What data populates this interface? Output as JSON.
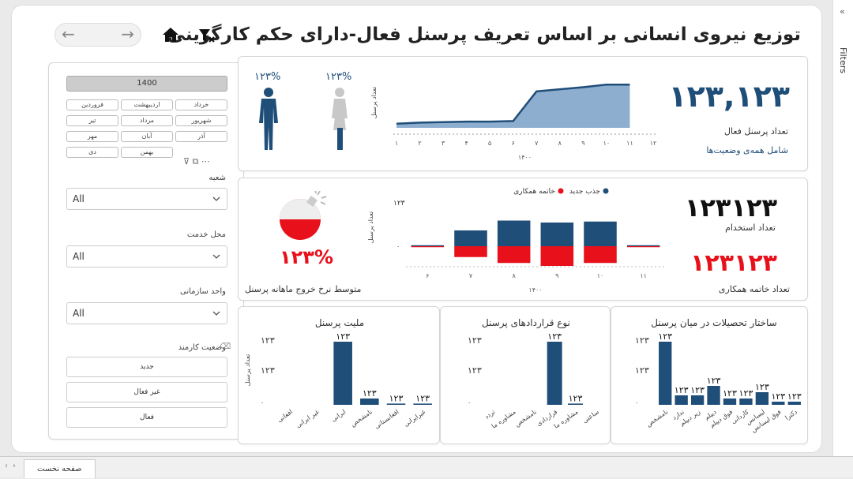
{
  "header": {
    "title": "توزیع نیروی انسانی بر اساس تعریف پرسنل فعال-دارای حکم کارگزینی",
    "nav_back": "←",
    "nav_forward": "→"
  },
  "filters_pane": {
    "label": "Filters",
    "chevron": "«"
  },
  "slicer": {
    "year": "1400",
    "months": [
      [
        "خرداد",
        "اردیبهشت",
        "فروردین"
      ],
      [
        "شهریور",
        "مرداد",
        "تیر"
      ],
      [
        "آذر",
        "آبان",
        "مهر"
      ],
      [
        "",
        "بهمن",
        "دی"
      ]
    ],
    "icons": "⊽ ⧉ ⋯",
    "branch_label": "شعبه",
    "branch_value": "All",
    "service_label": "محل خدمت",
    "service_value": "All",
    "org_label": "واحد سازمانی",
    "org_value": "All",
    "status_label": "وضعیت کارمند",
    "status_options": [
      "جدید",
      "غیر فعال",
      "فعال"
    ],
    "eraser": "⌫"
  },
  "kpi_active": {
    "value": "۱۲۳,۱۲۳",
    "label": "تعداد پرسنل فعال",
    "sublabel": "شامل همه‌ی وضعیت‌ها",
    "male_pct": "۱۲۳%",
    "female_pct": "۱۲۳%"
  },
  "kpi_hire": {
    "hire_value": "۱۲۳۱۲۳",
    "hire_label": "تعداد استخدام",
    "term_value": "۱۲۳۱۲۳",
    "term_label": "تعداد خاتمه همکاری",
    "exit_rate": "۱۲۳%",
    "exit_label": "متوسط نرخ خروج ماهانه پرسنل"
  },
  "chart_data": [
    {
      "type": "area",
      "ylabel": "تعداد پرسنل",
      "xlabel": "۱۴۰۰",
      "categories": [
        "۱",
        "۲",
        "۳",
        "۴",
        "۵",
        "۶",
        "۷",
        "۸",
        "۹",
        "۱۰",
        "۱۱",
        "۱۲"
      ],
      "values": [
        8,
        10,
        11,
        12,
        12,
        13,
        70,
        74,
        78,
        83,
        83,
        null
      ],
      "ylim": [
        0,
        100
      ],
      "color": "#8eaed0",
      "line_color": "#1f4e79"
    },
    {
      "type": "bar",
      "ylabel": "تعداد پرسنل",
      "xlabel": "۱۴۰۰",
      "legend": [
        "جذب جدید",
        "خاتمه همکاری"
      ],
      "legend_colors": [
        "#1f4e79",
        "#e8101a"
      ],
      "ytick_top": "۱۲۳",
      "ytick_zero": "۰",
      "categories": [
        "۶",
        "۷",
        "۸",
        "۹",
        "۱۰",
        "۱۱"
      ],
      "series": [
        {
          "name": "جذب جدید",
          "values": [
            1,
            16,
            26,
            24,
            25,
            1
          ]
        },
        {
          "name": "خاتمه همکاری",
          "values": [
            1,
            11,
            17,
            20,
            17,
            1
          ]
        }
      ]
    },
    {
      "type": "bar",
      "title": "ملیت پرسنل",
      "ylabel": "تعداد پرسنل",
      "yticks": [
        "۰",
        "۱۲۳",
        "۱۲۳"
      ],
      "categories": [
        "افغانی",
        "غیر ایرانی",
        "ایرانی",
        "نامشخص",
        "افغانستانی",
        "غیرایرانی"
      ],
      "values": [
        0,
        0,
        100,
        10,
        2,
        2
      ],
      "labels": [
        "",
        "",
        "۱۲۳",
        "۱۲۳",
        "۱۲۳",
        "۱۲۳"
      ]
    },
    {
      "type": "bar",
      "title": "نوع قراردادهای پرسنل",
      "yticks": [
        "۰",
        "۱۲۳",
        "۱۲۳"
      ],
      "categories": [
        "تردد",
        "مشاوره ما",
        "نامشخص",
        "قراردادی",
        "مشاوره ما",
        "ساعتی"
      ],
      "values": [
        0,
        0,
        0,
        100,
        2,
        0
      ],
      "labels": [
        "",
        "",
        "",
        "۱۲۳",
        "۱۲۳",
        ""
      ]
    },
    {
      "type": "bar",
      "title": "ساختار تحصیلات در میان پرسنل",
      "yticks": [
        "۰",
        "۱۲۳",
        "۱۲۳"
      ],
      "categories": [
        "نامشخص",
        "ندارد",
        "زیر دیپلم",
        "دیپلم",
        "فوق دیپلم",
        "کاردانی",
        "لیسانس",
        "فوق لیسانس",
        "دکترا"
      ],
      "values": [
        100,
        15,
        15,
        30,
        10,
        10,
        20,
        5,
        5
      ],
      "labels": [
        "۱۲۳",
        "۱۲۳",
        "۱۲۳",
        "۱۲۳",
        "۱۲۳",
        "۱۲۳",
        "۱۲۳",
        "۱۲۳",
        "۱۲۳"
      ]
    }
  ],
  "footer": {
    "page_tab": "صفحه نخست",
    "prev": "‹",
    "next": "›"
  },
  "colors": {
    "navy": "#1f4e79",
    "red": "#e8101a",
    "area": "#8eaed0"
  }
}
